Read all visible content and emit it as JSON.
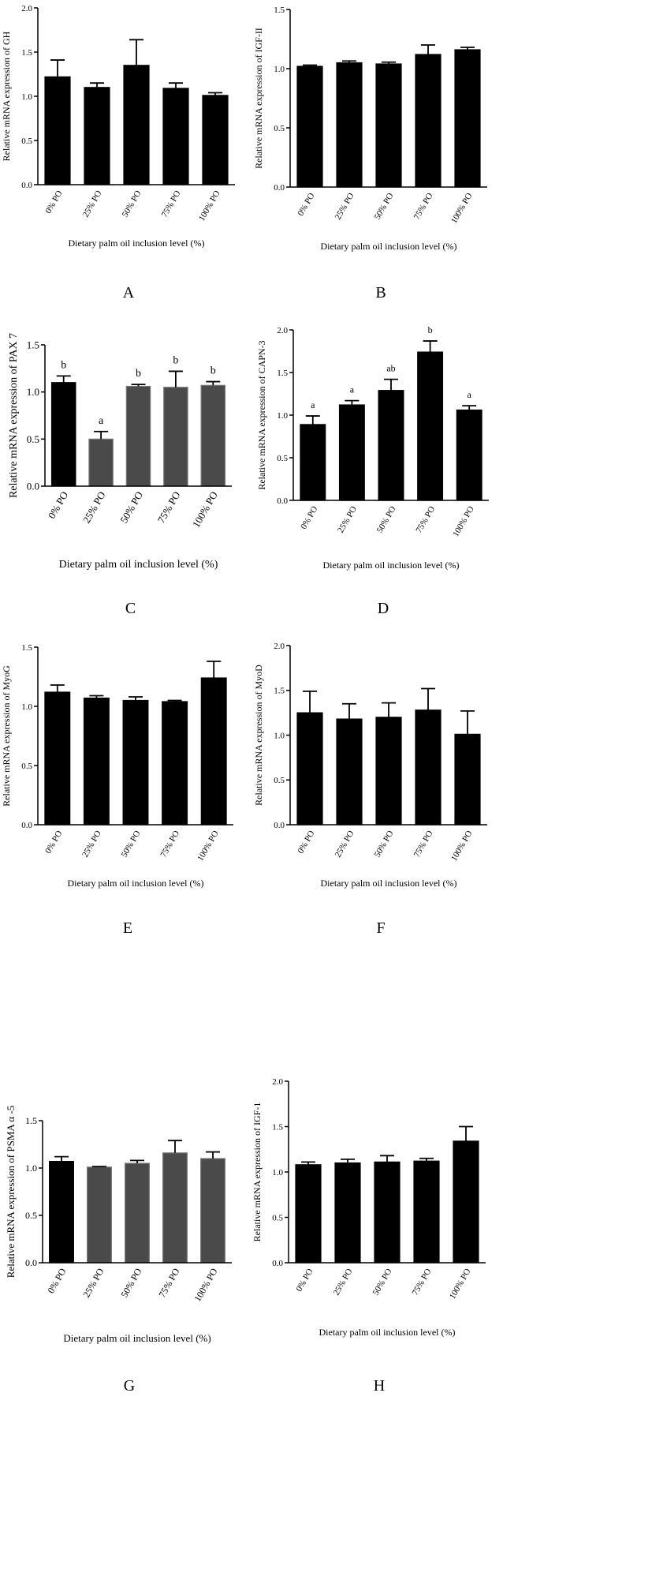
{
  "chart_data": [
    {
      "panel": "A",
      "type": "bar",
      "categories": [
        "0% PO",
        "25% PO",
        "50% PO",
        "75% PO",
        "100% PO"
      ],
      "values": [
        1.22,
        1.1,
        1.35,
        1.09,
        1.01
      ],
      "errors": [
        0.19,
        0.05,
        0.29,
        0.06,
        0.03
      ],
      "ylabel": "Relative mRNA expression of GH",
      "xlabel": "Dietary palm oil inclusion level (%)",
      "ylim": [
        0,
        2.0
      ],
      "yticks": [
        "0.0",
        "0.5",
        "1.0",
        "1.5",
        "2.0"
      ],
      "bar_colors": [
        "#000000",
        "#000000",
        "#000000",
        "#000000",
        "#000000"
      ],
      "annotations": []
    },
    {
      "panel": "B",
      "type": "bar",
      "categories": [
        "0% PO",
        "25% PO",
        "50% PO",
        "75% PO",
        "100% PO"
      ],
      "values": [
        1.02,
        1.05,
        1.04,
        1.12,
        1.16
      ],
      "errors": [
        0.01,
        0.015,
        0.015,
        0.08,
        0.02
      ],
      "ylabel": "Relative mRNA expression of IGF-II",
      "xlabel": "Dietary palm oil inclusion level (%)",
      "ylim": [
        0,
        1.5
      ],
      "yticks": [
        "0.0",
        "0.5",
        "1.0",
        "1.5"
      ],
      "bar_colors": [
        "#000000",
        "#000000",
        "#000000",
        "#000000",
        "#000000"
      ],
      "annotations": []
    },
    {
      "panel": "C",
      "type": "bar",
      "categories": [
        "0% PO",
        "25% PO",
        "50% PO",
        "75% PO",
        "100% PO"
      ],
      "values": [
        1.1,
        0.5,
        1.06,
        1.05,
        1.07
      ],
      "errors": [
        0.07,
        0.08,
        0.02,
        0.17,
        0.04
      ],
      "ylabel": "Relative mRNA expression of PAX 7",
      "xlabel": "Dietary palm oil inclusion level (%)",
      "ylim": [
        0,
        1.5
      ],
      "yticks": [
        "0.0",
        "0.5",
        "1.0",
        "1.5"
      ],
      "bar_colors": [
        "#000000",
        "#4a4a4a",
        "#4a4a4a",
        "#4a4a4a",
        "#4a4a4a"
      ],
      "annotations": [
        "b",
        "a",
        "b",
        "b",
        "b"
      ]
    },
    {
      "panel": "D",
      "type": "bar",
      "categories": [
        "0% PO",
        "25% PO",
        "50% PO",
        "75% PO",
        "100% PO"
      ],
      "values": [
        0.89,
        1.12,
        1.29,
        1.74,
        1.06
      ],
      "errors": [
        0.1,
        0.05,
        0.13,
        0.13,
        0.05
      ],
      "ylabel": "Relative mRNA expression of CAPN-3",
      "xlabel": "Dietary palm oil inclusion level (%)",
      "ylim": [
        0,
        2.0
      ],
      "yticks": [
        "0.0",
        "0.5",
        "1.0",
        "1.5",
        "2.0"
      ],
      "bar_colors": [
        "#000000",
        "#000000",
        "#000000",
        "#000000",
        "#000000"
      ],
      "annotations": [
        "a",
        "a",
        "ab",
        "b",
        "a"
      ]
    },
    {
      "panel": "E",
      "type": "bar",
      "categories": [
        "0% PO",
        "25% PO",
        "50% PO",
        "75% PO",
        "100% PO"
      ],
      "values": [
        1.12,
        1.07,
        1.05,
        1.04,
        1.24
      ],
      "errors": [
        0.06,
        0.02,
        0.03,
        0.01,
        0.14
      ],
      "ylabel": "Relative mRNA expression of MyoG",
      "xlabel": "Dietary palm oil inclusion level (%)",
      "ylim": [
        0,
        1.5
      ],
      "yticks": [
        "0.0",
        "0.5",
        "1.0",
        "1.5"
      ],
      "bar_colors": [
        "#000000",
        "#000000",
        "#000000",
        "#000000",
        "#000000"
      ],
      "annotations": []
    },
    {
      "panel": "F",
      "type": "bar",
      "categories": [
        "0% PO",
        "25% PO",
        "50% PO",
        "75% PO",
        "100% PO"
      ],
      "values": [
        1.25,
        1.18,
        1.2,
        1.28,
        1.01
      ],
      "errors": [
        0.24,
        0.17,
        0.16,
        0.24,
        0.26
      ],
      "ylabel": "Relative mRNA expression of MyoD",
      "xlabel": "Dietary palm oil inclusion level (%)",
      "ylim": [
        0,
        2.0
      ],
      "yticks": [
        "0.0",
        "0.5",
        "1.0",
        "1.5",
        "2.0"
      ],
      "bar_colors": [
        "#000000",
        "#000000",
        "#000000",
        "#000000",
        "#000000"
      ],
      "annotations": []
    },
    {
      "panel": "G",
      "type": "bar",
      "categories": [
        "0% PO",
        "25% PO",
        "50% PO",
        "75% PO",
        "100% PO"
      ],
      "values": [
        1.07,
        1.01,
        1.05,
        1.16,
        1.1
      ],
      "errors": [
        0.05,
        0.005,
        0.03,
        0.13,
        0.07
      ],
      "ylabel": "Relative mRNA expression of PSMA α -5",
      "xlabel": "Dietary palm oil inclusion level (%)",
      "ylim": [
        0,
        1.5
      ],
      "yticks": [
        "0.0",
        "0.5",
        "1.0",
        "1.5"
      ],
      "bar_colors": [
        "#000000",
        "#4a4a4a",
        "#4a4a4a",
        "#4a4a4a",
        "#4a4a4a"
      ],
      "annotations": []
    },
    {
      "panel": "H",
      "type": "bar",
      "categories": [
        "0% PO",
        "25% PO",
        "50% PO",
        "75% PO",
        "100% PO"
      ],
      "values": [
        1.08,
        1.1,
        1.11,
        1.12,
        1.34
      ],
      "errors": [
        0.03,
        0.04,
        0.07,
        0.03,
        0.16
      ],
      "ylabel": "Relative mRNA expression of IGF-1",
      "xlabel": "Dietary palm oil inclusion level (%)",
      "ylim": [
        0,
        2.0
      ],
      "yticks": [
        "0.0",
        "0.5",
        "1.0",
        "1.5",
        "2.0"
      ],
      "bar_colors": [
        "#000000",
        "#000000",
        "#000000",
        "#000000",
        "#000000"
      ],
      "annotations": []
    }
  ]
}
